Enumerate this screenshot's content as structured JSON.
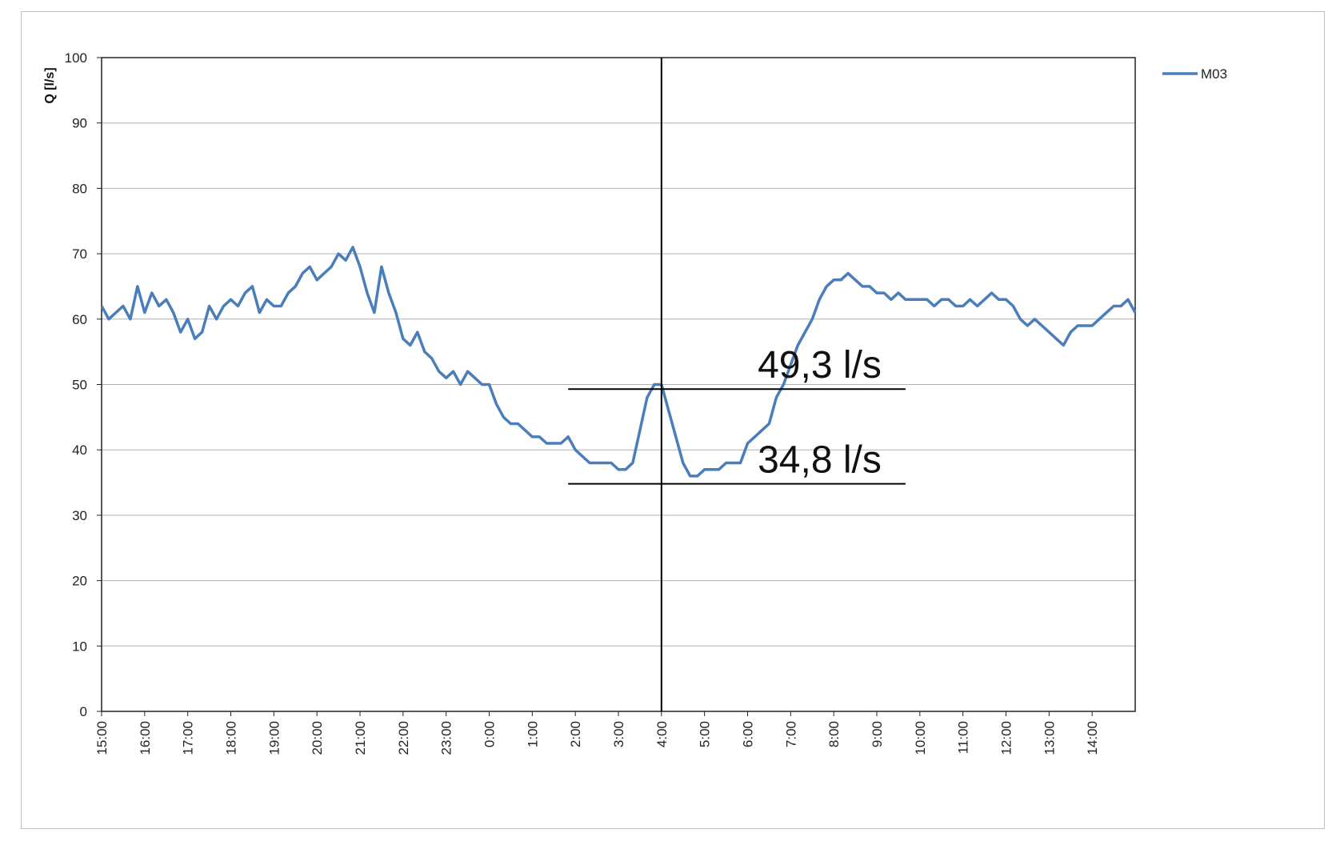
{
  "chart_data": {
    "type": "line",
    "title": "",
    "xlabel": "",
    "ylabel": "Q [l/s]",
    "ylim": [
      0,
      100
    ],
    "yticks": [
      0,
      10,
      20,
      30,
      40,
      50,
      60,
      70,
      80,
      90,
      100
    ],
    "xticks": [
      "15:00",
      "16:00",
      "17:00",
      "18:00",
      "19:00",
      "20:00",
      "21:00",
      "22:00",
      "23:00",
      "0:00",
      "1:00",
      "2:00",
      "3:00",
      "4:00",
      "5:00",
      "6:00",
      "7:00",
      "8:00",
      "9:00",
      "10:00",
      "11:00",
      "12:00",
      "13:00",
      "14:00"
    ],
    "grid": true,
    "legend_position": "top-right",
    "series": [
      {
        "name": "M03",
        "color": "#4a7ebb",
        "x_hours_labels_from": "15:00",
        "points": [
          [
            "15:00",
            62
          ],
          [
            "15:10",
            60
          ],
          [
            "15:20",
            61
          ],
          [
            "15:30",
            62
          ],
          [
            "15:40",
            60
          ],
          [
            "15:50",
            65
          ],
          [
            "16:00",
            61
          ],
          [
            "16:10",
            64
          ],
          [
            "16:20",
            62
          ],
          [
            "16:30",
            63
          ],
          [
            "16:40",
            61
          ],
          [
            "16:50",
            58
          ],
          [
            "17:00",
            60
          ],
          [
            "17:10",
            57
          ],
          [
            "17:20",
            58
          ],
          [
            "17:30",
            62
          ],
          [
            "17:40",
            60
          ],
          [
            "17:50",
            62
          ],
          [
            "18:00",
            63
          ],
          [
            "18:10",
            62
          ],
          [
            "18:20",
            64
          ],
          [
            "18:30",
            65
          ],
          [
            "18:40",
            61
          ],
          [
            "18:50",
            63
          ],
          [
            "19:00",
            62
          ],
          [
            "19:10",
            62
          ],
          [
            "19:20",
            64
          ],
          [
            "19:30",
            65
          ],
          [
            "19:40",
            67
          ],
          [
            "19:50",
            68
          ],
          [
            "20:00",
            66
          ],
          [
            "20:10",
            67
          ],
          [
            "20:20",
            68
          ],
          [
            "20:30",
            70
          ],
          [
            "20:40",
            69
          ],
          [
            "20:50",
            71
          ],
          [
            "21:00",
            68
          ],
          [
            "21:10",
            64
          ],
          [
            "21:20",
            61
          ],
          [
            "21:30",
            68
          ],
          [
            "21:40",
            64
          ],
          [
            "21:50",
            61
          ],
          [
            "22:00",
            57
          ],
          [
            "22:10",
            56
          ],
          [
            "22:20",
            58
          ],
          [
            "22:30",
            55
          ],
          [
            "22:40",
            54
          ],
          [
            "22:50",
            52
          ],
          [
            "23:00",
            51
          ],
          [
            "23:10",
            52
          ],
          [
            "23:20",
            50
          ],
          [
            "23:30",
            52
          ],
          [
            "23:40",
            51
          ],
          [
            "23:50",
            50
          ],
          [
            "0:00",
            50
          ],
          [
            "0:10",
            47
          ],
          [
            "0:20",
            45
          ],
          [
            "0:30",
            44
          ],
          [
            "0:40",
            44
          ],
          [
            "0:50",
            43
          ],
          [
            "1:00",
            42
          ],
          [
            "1:10",
            42
          ],
          [
            "1:20",
            41
          ],
          [
            "1:30",
            41
          ],
          [
            "1:40",
            41
          ],
          [
            "1:50",
            42
          ],
          [
            "2:00",
            40
          ],
          [
            "2:10",
            39
          ],
          [
            "2:20",
            38
          ],
          [
            "2:30",
            38
          ],
          [
            "2:40",
            38
          ],
          [
            "2:50",
            38
          ],
          [
            "3:00",
            37
          ],
          [
            "3:10",
            37
          ],
          [
            "3:20",
            38
          ],
          [
            "3:30",
            43
          ],
          [
            "3:40",
            48
          ],
          [
            "3:50",
            50
          ],
          [
            "4:00",
            50
          ],
          [
            "4:10",
            46
          ],
          [
            "4:20",
            42
          ],
          [
            "4:30",
            38
          ],
          [
            "4:40",
            36
          ],
          [
            "4:50",
            36
          ],
          [
            "5:00",
            37
          ],
          [
            "5:10",
            37
          ],
          [
            "5:20",
            37
          ],
          [
            "5:30",
            38
          ],
          [
            "5:40",
            38
          ],
          [
            "5:50",
            38
          ],
          [
            "6:00",
            41
          ],
          [
            "6:10",
            42
          ],
          [
            "6:20",
            43
          ],
          [
            "6:30",
            44
          ],
          [
            "6:40",
            48
          ],
          [
            "6:50",
            50
          ],
          [
            "7:00",
            53
          ],
          [
            "7:10",
            56
          ],
          [
            "7:20",
            58
          ],
          [
            "7:30",
            60
          ],
          [
            "7:40",
            63
          ],
          [
            "7:50",
            65
          ],
          [
            "8:00",
            66
          ],
          [
            "8:10",
            66
          ],
          [
            "8:20",
            67
          ],
          [
            "8:30",
            66
          ],
          [
            "8:40",
            65
          ],
          [
            "8:50",
            65
          ],
          [
            "9:00",
            64
          ],
          [
            "9:10",
            64
          ],
          [
            "9:20",
            63
          ],
          [
            "9:30",
            64
          ],
          [
            "9:40",
            63
          ],
          [
            "9:50",
            63
          ],
          [
            "10:00",
            63
          ],
          [
            "10:10",
            63
          ],
          [
            "10:20",
            62
          ],
          [
            "10:30",
            63
          ],
          [
            "10:40",
            63
          ],
          [
            "10:50",
            62
          ],
          [
            "11:00",
            62
          ],
          [
            "11:10",
            63
          ],
          [
            "11:20",
            62
          ],
          [
            "11:30",
            63
          ],
          [
            "11:40",
            64
          ],
          [
            "11:50",
            63
          ],
          [
            "12:00",
            63
          ],
          [
            "12:10",
            62
          ],
          [
            "12:20",
            60
          ],
          [
            "12:30",
            59
          ],
          [
            "12:40",
            60
          ],
          [
            "12:50",
            59
          ],
          [
            "13:00",
            58
          ],
          [
            "13:10",
            57
          ],
          [
            "13:20",
            56
          ],
          [
            "13:30",
            58
          ],
          [
            "13:40",
            59
          ],
          [
            "13:50",
            59
          ],
          [
            "14:00",
            59
          ],
          [
            "14:10",
            60
          ],
          [
            "14:20",
            61
          ],
          [
            "14:30",
            62
          ],
          [
            "14:40",
            62
          ],
          [
            "14:50",
            63
          ],
          [
            "15:00",
            61
          ]
        ]
      }
    ],
    "annotations": [
      {
        "text": "49,3 l/s",
        "value": 49.3
      },
      {
        "text": "34,8 l/s",
        "value": 34.8
      }
    ],
    "marker_line_at": "4:00"
  }
}
